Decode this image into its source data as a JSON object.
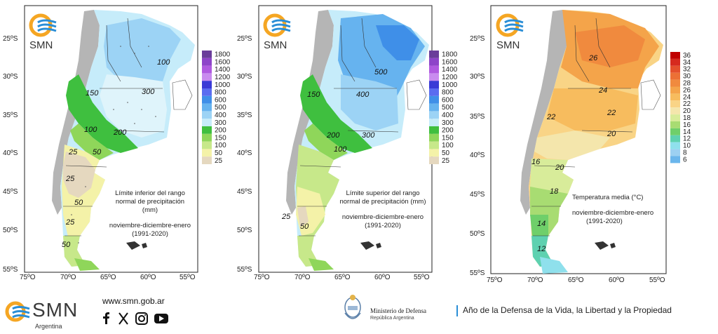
{
  "panels": [
    {
      "id": "lower",
      "logo_text": "SMN",
      "lat_labels": [
        "25ºS",
        "30ºS",
        "35ºS",
        "40ºS",
        "45ºS",
        "50ºS",
        "55ºS"
      ],
      "lon_labels": [
        "75ºO",
        "70ºO",
        "65ºO",
        "60ºO",
        "55ºO"
      ],
      "caption_line1": "Límite inferior del rango",
      "caption_line2": "normal de precipitación (mm)",
      "caption_line3": "noviembre-diciembre-enero",
      "caption_line4": "(1991-2020)",
      "contour_labels": [
        "100",
        "300",
        "150",
        "100",
        "200",
        "50",
        "25",
        "25",
        "50",
        "25",
        "50"
      ],
      "legend_ticks": [
        "1800",
        "1600",
        "1400",
        "1200",
        "1000",
        "800",
        "600",
        "500",
        "400",
        "300",
        "200",
        "150",
        "100",
        "50",
        "25"
      ],
      "legend_colors": [
        "#6a3d9a",
        "#8e44c9",
        "#b05ae0",
        "#c98bef",
        "#3a3ad6",
        "#5a6cf0",
        "#3f8fe8",
        "#66b3ef",
        "#9cd3f5",
        "#c6ecfa",
        "#3fbf3f",
        "#8fd65a",
        "#c7e88a",
        "#f4f2a8",
        "#e5d8bf"
      ]
    },
    {
      "id": "upper",
      "logo_text": "SMN",
      "lat_labels": [
        "25ºS",
        "30ºS",
        "35ºS",
        "40ºS",
        "45ºS",
        "50ºS",
        "55ºS"
      ],
      "lon_labels": [
        "75ºO",
        "70ºO",
        "65ºO",
        "60ºO",
        "55ºO"
      ],
      "caption_line1": "Límite superior del rango",
      "caption_line2": "normal de precipitación (mm)",
      "caption_line3": "noviembre-diciembre-enero",
      "caption_line4": "(1991-2020)",
      "contour_labels": [
        "500",
        "400",
        "300",
        "200",
        "100",
        "150",
        "25",
        "50"
      ],
      "legend_ticks": [
        "1800",
        "1600",
        "1400",
        "1200",
        "1000",
        "800",
        "600",
        "500",
        "400",
        "300",
        "200",
        "150",
        "100",
        "50",
        "25"
      ],
      "legend_colors": [
        "#6a3d9a",
        "#8e44c9",
        "#b05ae0",
        "#c98bef",
        "#3a3ad6",
        "#5a6cf0",
        "#3f8fe8",
        "#66b3ef",
        "#9cd3f5",
        "#c6ecfa",
        "#3fbf3f",
        "#8fd65a",
        "#c7e88a",
        "#f4f2a8",
        "#e5d8bf"
      ]
    },
    {
      "id": "temp",
      "logo_text": "SMN",
      "lat_labels": [
        "25ºS",
        "30ºS",
        "35ºS",
        "40ºS",
        "45ºS",
        "50ºS",
        "55ºS"
      ],
      "lon_labels": [
        "75ºO",
        "70ºO",
        "65ºO",
        "60ºO",
        "55ºO"
      ],
      "caption_line1": "Temperatura media (°C)",
      "caption_line2": "",
      "caption_line3": "noviembre-diciembre-enero",
      "caption_line4": "(1991-2020)",
      "contour_labels": [
        "26",
        "24",
        "22",
        "22",
        "20",
        "20",
        "16",
        "18",
        "14",
        "12"
      ],
      "legend_ticks": [
        "36",
        "34",
        "32",
        "30",
        "28",
        "26",
        "24",
        "22",
        "20",
        "18",
        "16",
        "14",
        "12",
        "10",
        "8",
        "6"
      ],
      "legend_colors": [
        "#c00000",
        "#d62a1e",
        "#e4502c",
        "#ec7035",
        "#f08a3e",
        "#f4a44a",
        "#f7bc5e",
        "#f9d486",
        "#f4e6ac",
        "#d8ec9a",
        "#a8dc72",
        "#6fcf6a",
        "#5ed1b0",
        "#8fe0ec",
        "#9cd0f2",
        "#6bb6ec"
      ]
    }
  ],
  "footer": {
    "smn_logo_text": "SMN",
    "smn_logo_sub": "Argentina",
    "website": "www.smn.gob.ar",
    "social_icons": [
      "facebook-icon",
      "x-icon",
      "instagram-icon",
      "youtube-icon"
    ],
    "ministry_line1": "Ministerio de Defensa",
    "ministry_line2": "República Argentina",
    "motto": "Año de la Defensa de la Vida, la Libertad y la Propiedad"
  }
}
